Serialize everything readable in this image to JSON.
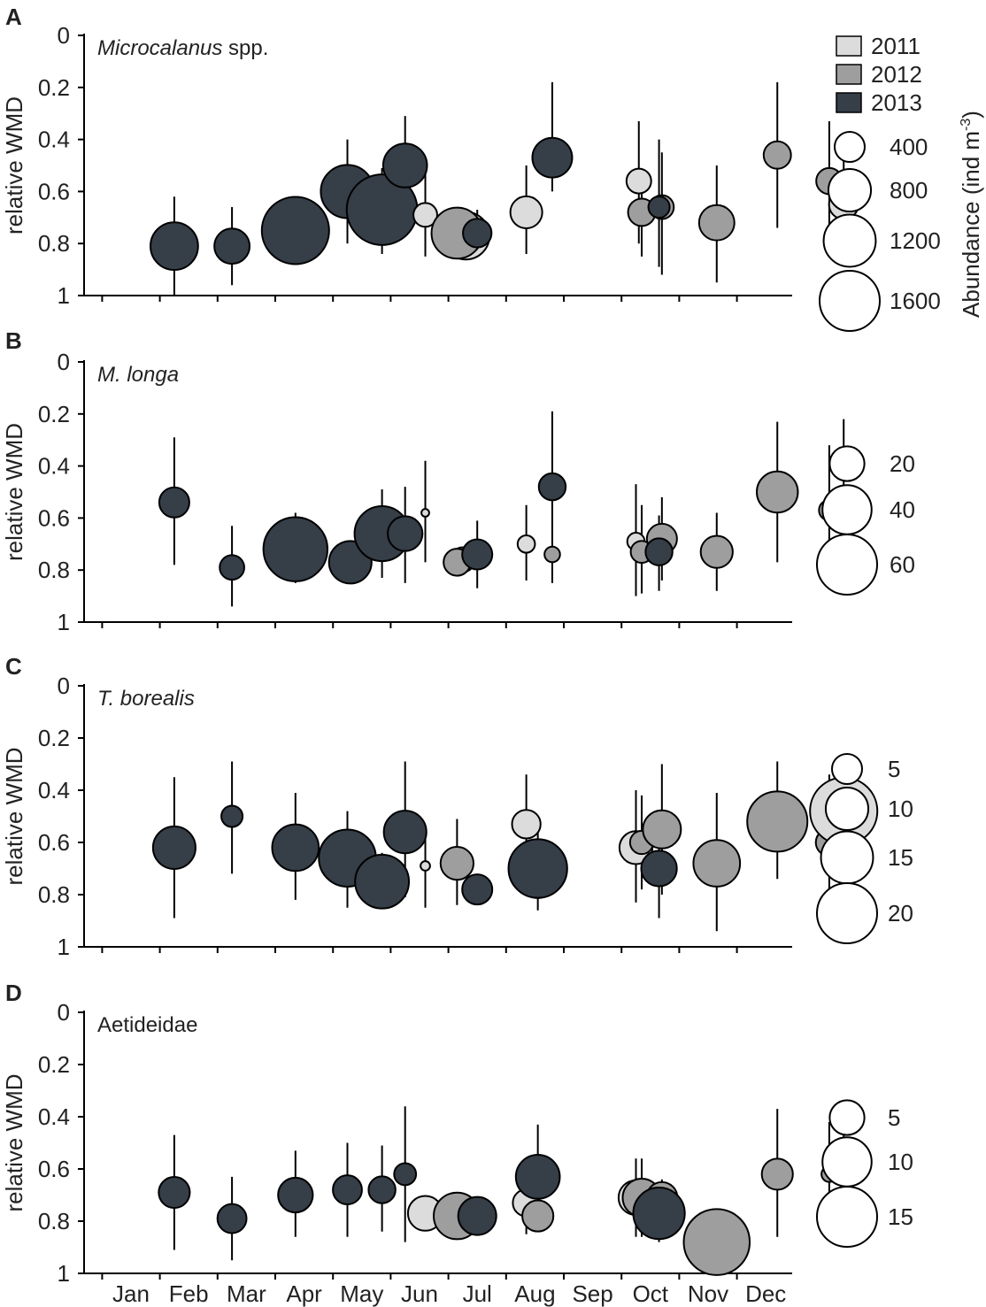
{
  "colors": {
    "2011": "#dcdcdc",
    "2012": "#9e9e9e",
    "2013": "#363e48"
  },
  "legend": {
    "years": [
      "2011",
      "2012",
      "2013"
    ],
    "abundance_title": "Abundance (ind m",
    "abundance_exp": "-3",
    "abundance_close": ")"
  },
  "chart_data": [
    {
      "type": "scatter",
      "panel": "A",
      "title": "Microcalanus spp.",
      "title_italic": "Microcalanus",
      "title_rest": " spp.",
      "ylabel": "relative WMD",
      "ylim": [
        1,
        0
      ],
      "yticks": [
        "0",
        "0.2",
        "0.4",
        "0.6",
        "0.8",
        "1"
      ],
      "categories": [
        "Jan",
        "Feb",
        "Mar",
        "Apr",
        "May",
        "Jun",
        "Jul",
        "Aug",
        "Sep",
        "Oct",
        "Nov",
        "Dec"
      ],
      "size_legend": [
        400,
        800,
        1200,
        1600
      ],
      "size_max": 1600,
      "points": [
        {
          "month": 0.75,
          "year": "2013",
          "y": 0.81,
          "lo": 0.62,
          "hi": 1.0,
          "abundance": 1000
        },
        {
          "month": 1.75,
          "year": "2013",
          "y": 0.81,
          "lo": 0.66,
          "hi": 0.96,
          "abundance": 550
        },
        {
          "month": 2.85,
          "year": "2013",
          "y": 0.75,
          "lo": null,
          "hi": null,
          "abundance": 2000
        },
        {
          "month": 3.75,
          "year": "2013",
          "y": 0.6,
          "lo": 0.4,
          "hi": 0.8,
          "abundance": 1250
        },
        {
          "month": 4.35,
          "year": "2013",
          "y": 0.67,
          "lo": 0.51,
          "hi": 0.84,
          "abundance": 2200
        },
        {
          "month": 4.75,
          "year": "2013",
          "y": 0.5,
          "lo": 0.31,
          "hi": 0.73,
          "abundance": 850
        },
        {
          "month": 5.1,
          "year": "2011",
          "y": 0.69,
          "lo": 0.53,
          "hi": 0.85,
          "abundance": 250
        },
        {
          "month": 5.8,
          "year": "2011",
          "y": 0.77,
          "lo": 0.7,
          "hi": 0.84,
          "abundance": 1000
        },
        {
          "month": 5.65,
          "year": "2012",
          "y": 0.76,
          "lo": null,
          "hi": null,
          "abundance": 1150
        },
        {
          "month": 6.0,
          "year": "2013",
          "y": 0.76,
          "lo": 0.67,
          "hi": 0.82,
          "abundance": 360
        },
        {
          "month": 6.85,
          "year": "2011",
          "y": 0.68,
          "lo": 0.5,
          "hi": 0.84,
          "abundance": 450
        },
        {
          "month": 7.3,
          "year": "2013",
          "y": 0.47,
          "lo": 0.18,
          "hi": 0.6,
          "abundance": 700
        },
        {
          "month": 8.8,
          "year": "2011",
          "y": 0.56,
          "lo": 0.33,
          "hi": 0.8,
          "abundance": 270
        },
        {
          "month": 8.85,
          "year": "2012",
          "y": 0.68,
          "lo": 0.52,
          "hi": 0.85,
          "abundance": 330
        },
        {
          "month": 9.2,
          "year": "2012",
          "y": 0.66,
          "lo": 0.45,
          "hi": 0.92,
          "abundance": 250
        },
        {
          "month": 9.15,
          "year": "2013",
          "y": 0.66,
          "lo": 0.4,
          "hi": 0.89,
          "abundance": 200
        },
        {
          "month": 10.15,
          "year": "2012",
          "y": 0.72,
          "lo": 0.5,
          "hi": 0.95,
          "abundance": 550
        },
        {
          "month": 11.2,
          "year": "2012",
          "y": 0.46,
          "lo": 0.18,
          "hi": 0.74,
          "abundance": 330
        },
        {
          "month": 12.1,
          "year": "2012",
          "y": 0.56,
          "lo": 0.33,
          "hi": 0.78,
          "abundance": 300
        },
        {
          "month": 12.35,
          "year": "2011",
          "y": 0.65,
          "lo": 0.45,
          "hi": 0.84,
          "abundance": 380
        }
      ]
    },
    {
      "type": "scatter",
      "panel": "B",
      "title": "M. longa",
      "title_italic": "M. longa",
      "title_rest": "",
      "ylabel": "relative WMD",
      "ylim": [
        1,
        0
      ],
      "yticks": [
        "0",
        "0.2",
        "0.4",
        "0.6",
        "0.8",
        "1"
      ],
      "categories": [
        "Jan",
        "Feb",
        "Mar",
        "Apr",
        "May",
        "Jun",
        "Jul",
        "Aug",
        "Sep",
        "Oct",
        "Nov",
        "Dec"
      ],
      "size_legend": [
        20,
        40,
        60
      ],
      "size_max": 60,
      "points": [
        {
          "month": 0.75,
          "year": "2013",
          "y": 0.54,
          "lo": 0.29,
          "hi": 0.78,
          "abundance": 15
        },
        {
          "month": 1.75,
          "year": "2013",
          "y": 0.79,
          "lo": 0.63,
          "hi": 0.94,
          "abundance": 10
        },
        {
          "month": 2.85,
          "year": "2013",
          "y": 0.72,
          "lo": 0.58,
          "hi": 0.85,
          "abundance": 68
        },
        {
          "month": 3.8,
          "year": "2013",
          "y": 0.77,
          "lo": null,
          "hi": null,
          "abundance": 30
        },
        {
          "month": 4.35,
          "year": "2013",
          "y": 0.66,
          "lo": 0.49,
          "hi": 0.83,
          "abundance": 50
        },
        {
          "month": 4.75,
          "year": "2013",
          "y": 0.66,
          "lo": 0.48,
          "hi": 0.85,
          "abundance": 20
        },
        {
          "month": 5.1,
          "year": "2011",
          "y": 0.58,
          "lo": 0.38,
          "hi": 0.77,
          "abundance": 1
        },
        {
          "month": 5.75,
          "year": "2011",
          "y": 0.76,
          "lo": null,
          "hi": null,
          "abundance": 10
        },
        {
          "month": 5.65,
          "year": "2012",
          "y": 0.77,
          "lo": null,
          "hi": null,
          "abundance": 12
        },
        {
          "month": 6.0,
          "year": "2013",
          "y": 0.74,
          "lo": 0.61,
          "hi": 0.87,
          "abundance": 15
        },
        {
          "month": 6.85,
          "year": "2011",
          "y": 0.7,
          "lo": 0.55,
          "hi": 0.84,
          "abundance": 5
        },
        {
          "month": 7.3,
          "year": "2012",
          "y": 0.74,
          "lo": 0.63,
          "hi": 0.85,
          "abundance": 4
        },
        {
          "month": 7.3,
          "year": "2013",
          "y": 0.48,
          "lo": 0.19,
          "hi": 0.64,
          "abundance": 12
        },
        {
          "month": 8.75,
          "year": "2011",
          "y": 0.69,
          "lo": 0.47,
          "hi": 0.9,
          "abundance": 5
        },
        {
          "month": 8.85,
          "year": "2012",
          "y": 0.73,
          "lo": 0.55,
          "hi": 0.89,
          "abundance": 8
        },
        {
          "month": 9.2,
          "year": "2012",
          "y": 0.68,
          "lo": 0.52,
          "hi": 0.84,
          "abundance": 15
        },
        {
          "month": 9.15,
          "year": "2013",
          "y": 0.73,
          "lo": 0.59,
          "hi": 0.88,
          "abundance": 12
        },
        {
          "month": 10.15,
          "year": "2012",
          "y": 0.73,
          "lo": 0.58,
          "hi": 0.88,
          "abundance": 17
        },
        {
          "month": 11.2,
          "year": "2012",
          "y": 0.5,
          "lo": 0.23,
          "hi": 0.77,
          "abundance": 28
        },
        {
          "month": 12.1,
          "year": "2012",
          "y": 0.57,
          "lo": 0.32,
          "hi": 0.82,
          "abundance": 7
        },
        {
          "month": 12.35,
          "year": "2011",
          "y": 0.39,
          "lo": 0.22,
          "hi": 0.57,
          "abundance": 12
        }
      ]
    },
    {
      "type": "scatter",
      "panel": "C",
      "title": "T. borealis",
      "title_italic": "T. borealis",
      "title_rest": "",
      "ylabel": "relative WMD",
      "ylim": [
        1,
        0
      ],
      "yticks": [
        "0",
        "0.2",
        "0.4",
        "0.6",
        "0.8",
        "1"
      ],
      "categories": [
        "Jan",
        "Feb",
        "Mar",
        "Apr",
        "May",
        "Jun",
        "Jul",
        "Aug",
        "Sep",
        "Oct",
        "Nov",
        "Dec"
      ],
      "size_legend": [
        5,
        10,
        15,
        20
      ],
      "size_max": 20,
      "points": [
        {
          "month": 0.75,
          "year": "2013",
          "y": 0.62,
          "lo": 0.35,
          "hi": 0.89,
          "abundance": 10
        },
        {
          "month": 1.75,
          "year": "2013",
          "y": 0.5,
          "lo": 0.29,
          "hi": 0.72,
          "abundance": 2.5
        },
        {
          "month": 2.85,
          "year": "2013",
          "y": 0.62,
          "lo": 0.41,
          "hi": 0.82,
          "abundance": 12
        },
        {
          "month": 3.75,
          "year": "2013",
          "y": 0.66,
          "lo": 0.48,
          "hi": 0.85,
          "abundance": 18
        },
        {
          "month": 4.35,
          "year": "2013",
          "y": 0.75,
          "lo": 0.64,
          "hi": 0.85,
          "abundance": 16
        },
        {
          "month": 4.75,
          "year": "2013",
          "y": 0.56,
          "lo": 0.29,
          "hi": 0.81,
          "abundance": 10
        },
        {
          "month": 5.1,
          "year": "2011",
          "y": 0.69,
          "lo": 0.54,
          "hi": 0.85,
          "abundance": 0.5
        },
        {
          "month": 5.65,
          "year": "2012",
          "y": 0.68,
          "lo": 0.51,
          "hi": 0.84,
          "abundance": 6
        },
        {
          "month": 6.0,
          "year": "2013",
          "y": 0.78,
          "lo": null,
          "hi": null,
          "abundance": 5
        },
        {
          "month": 6.85,
          "year": "2011",
          "y": 0.53,
          "lo": 0.34,
          "hi": 0.72,
          "abundance": 4.5
        },
        {
          "month": 7.05,
          "year": "2011",
          "y": 0.74,
          "lo": null,
          "hi": null,
          "abundance": 8
        },
        {
          "month": 7.05,
          "year": "2013",
          "y": 0.7,
          "lo": 0.5,
          "hi": 0.86,
          "abundance": 19
        },
        {
          "month": 8.75,
          "year": "2011",
          "y": 0.62,
          "lo": 0.4,
          "hi": 0.83,
          "abundance": 6
        },
        {
          "month": 8.85,
          "year": "2012",
          "y": 0.6,
          "lo": 0.42,
          "hi": 0.78,
          "abundance": 3
        },
        {
          "month": 9.2,
          "year": "2012",
          "y": 0.55,
          "lo": 0.3,
          "hi": 0.8,
          "abundance": 8
        },
        {
          "month": 9.15,
          "year": "2013",
          "y": 0.7,
          "lo": 0.55,
          "hi": 0.89,
          "abundance": 7
        },
        {
          "month": 10.15,
          "year": "2012",
          "y": 0.68,
          "lo": 0.41,
          "hi": 0.94,
          "abundance": 12
        },
        {
          "month": 11.2,
          "year": "2012",
          "y": 0.52,
          "lo": 0.29,
          "hi": 0.74,
          "abundance": 20
        },
        {
          "month": 12.1,
          "year": "2012",
          "y": 0.6,
          "lo": 0.34,
          "hi": 0.86,
          "abundance": 4
        },
        {
          "month": 12.35,
          "year": "2011",
          "y": 0.48,
          "lo": 0.29,
          "hi": 0.67,
          "abundance": 25
        }
      ]
    },
    {
      "type": "scatter",
      "panel": "D",
      "title": "Aetideidae",
      "title_italic": "",
      "title_rest": "Aetideidae",
      "ylabel": "relative WMD",
      "ylim": [
        1,
        0
      ],
      "yticks": [
        "0",
        "0.2",
        "0.4",
        "0.6",
        "0.8",
        "1"
      ],
      "categories": [
        "Jan",
        "Feb",
        "Mar",
        "Apr",
        "May",
        "Jun",
        "Jul",
        "Aug",
        "Sep",
        "Oct",
        "Nov",
        "Dec"
      ],
      "size_legend": [
        5,
        10,
        15
      ],
      "size_max": 15,
      "points": [
        {
          "month": 0.75,
          "year": "2013",
          "y": 0.69,
          "lo": 0.47,
          "hi": 0.91,
          "abundance": 4
        },
        {
          "month": 1.75,
          "year": "2013",
          "y": 0.79,
          "lo": 0.63,
          "hi": 0.95,
          "abundance": 3.5
        },
        {
          "month": 2.85,
          "year": "2013",
          "y": 0.7,
          "lo": 0.53,
          "hi": 0.86,
          "abundance": 5
        },
        {
          "month": 3.75,
          "year": "2013",
          "y": 0.68,
          "lo": 0.5,
          "hi": 0.86,
          "abundance": 3.5
        },
        {
          "month": 4.35,
          "year": "2013",
          "y": 0.68,
          "lo": 0.51,
          "hi": 0.84,
          "abundance": 3
        },
        {
          "month": 4.75,
          "year": "2013",
          "y": 0.62,
          "lo": 0.36,
          "hi": 0.88,
          "abundance": 2
        },
        {
          "month": 5.1,
          "year": "2011",
          "y": 0.77,
          "lo": null,
          "hi": null,
          "abundance": 5
        },
        {
          "month": 5.65,
          "year": "2012",
          "y": 0.78,
          "lo": null,
          "hi": null,
          "abundance": 9
        },
        {
          "month": 6.0,
          "year": "2013",
          "y": 0.78,
          "lo": null,
          "hi": null,
          "abundance": 6
        },
        {
          "month": 6.85,
          "year": "2011",
          "y": 0.73,
          "lo": 0.6,
          "hi": 0.85,
          "abundance": 3
        },
        {
          "month": 7.05,
          "year": "2012",
          "y": 0.78,
          "lo": null,
          "hi": null,
          "abundance": 4
        },
        {
          "month": 7.05,
          "year": "2013",
          "y": 0.63,
          "lo": 0.43,
          "hi": 0.83,
          "abundance": 8
        },
        {
          "month": 8.75,
          "year": "2011",
          "y": 0.71,
          "lo": 0.56,
          "hi": 0.86,
          "abundance": 5
        },
        {
          "month": 8.85,
          "year": "2012",
          "y": 0.71,
          "lo": 0.56,
          "hi": 0.86,
          "abundance": 6
        },
        {
          "month": 9.2,
          "year": "2012",
          "y": 0.71,
          "lo": 0.64,
          "hi": 0.78,
          "abundance": 4
        },
        {
          "month": 9.15,
          "year": "2013",
          "y": 0.77,
          "lo": 0.65,
          "hi": 0.88,
          "abundance": 11
        },
        {
          "month": 10.15,
          "year": "2012",
          "y": 0.88,
          "lo": null,
          "hi": null,
          "abundance": 18
        },
        {
          "month": 11.2,
          "year": "2012",
          "y": 0.62,
          "lo": 0.37,
          "hi": 0.86,
          "abundance": 4
        },
        {
          "month": 12.1,
          "year": "2012",
          "y": 0.62,
          "lo": 0.42,
          "hi": 0.82,
          "abundance": 1
        },
        {
          "month": 12.35,
          "year": "2011",
          "y": 0.6,
          "lo": 0.35,
          "hi": 0.85,
          "abundance": 2
        }
      ]
    }
  ]
}
